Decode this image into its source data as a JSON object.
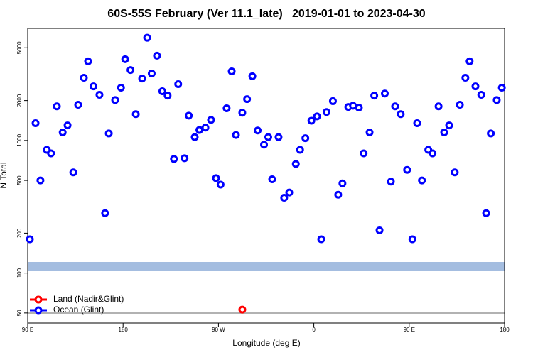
{
  "chart_data": {
    "type": "scatter",
    "title": "60S-55S February (Ver 11.1_late)   2019-01-01 to 2023-04-30",
    "x_label": "Longitude (deg E)",
    "y_label": "N Total",
    "log_y": true,
    "legend": "lower left",
    "xlim": [
      90,
      540
    ],
    "xticks": [
      {
        "value": 90,
        "label": "90 E"
      },
      {
        "value": 180,
        "label": "180"
      },
      {
        "value": 270,
        "label": "90 W"
      },
      {
        "value": 360,
        "label": "0"
      },
      {
        "value": 450,
        "label": "90 E"
      },
      {
        "value": 540,
        "label": "180"
      }
    ],
    "ylim": [
      42,
      7000
    ],
    "yticks": [
      50,
      100,
      200,
      500,
      1000,
      2000,
      5000
    ],
    "series": [
      {
        "name": "Land (Nadir&Glint)",
        "color": "#ff0000",
        "x": [
          292.5
        ],
        "values": [
          53
        ]
      },
      {
        "name": "Ocean (Glint)",
        "color": "#0000ff",
        "x": [
          92,
          97.4,
          102,
          108,
          112,
          117.5,
          123,
          127.6,
          133,
          137.6,
          143,
          147,
          152,
          157.7,
          163,
          166.5,
          172.5,
          178,
          182,
          187,
          192,
          198,
          202.7,
          207,
          212,
          217,
          222,
          228,
          232,
          238,
          242,
          247.6,
          252,
          257.7,
          263,
          267.7,
          272,
          277.7,
          282.5,
          286.5,
          292.5,
          297,
          302,
          307,
          313,
          317,
          320.7,
          326.7,
          332,
          336.8,
          343,
          347,
          352,
          357.7,
          363,
          367,
          372,
          378,
          383,
          387,
          392.5,
          397,
          402.5,
          407,
          412.6,
          417,
          422,
          427,
          432.7,
          436.7,
          442,
          448,
          453,
          457.5,
          462,
          468,
          472,
          477.7,
          483,
          487.7,
          493,
          497.8,
          503,
          507,
          512.5,
          518,
          522.6,
          527,
          532.6,
          537.4
        ],
        "values": [
          180,
          1350,
          500,
          850,
          800,
          1810,
          1150,
          1300,
          575,
          1860,
          2970,
          3950,
          2560,
          2210,
          283,
          1130,
          2020,
          2500,
          4100,
          3400,
          1580,
          2930,
          5950,
          3200,
          4360,
          2350,
          2180,
          725,
          2660,
          735,
          1540,
          1060,
          1200,
          1250,
          1430,
          520,
          465,
          1750,
          3320,
          1100,
          1620,
          2050,
          3050,
          1190,
          930,
          1060,
          510,
          1060,
          370,
          405,
          665,
          850,
          1040,
          1410,
          1520,
          180,
          1640,
          1980,
          390,
          475,
          1790,
          1830,
          1770,
          800,
          1150,
          2180,
          210,
          2260,
          490,
          1810,
          1580,
          600,
          180,
          1350,
          500,
          850,
          800,
          1810,
          1150,
          1300,
          575,
          1860,
          2970,
          3950,
          2560,
          2210,
          283,
          1130,
          2020,
          2500
        ]
      }
    ]
  }
}
